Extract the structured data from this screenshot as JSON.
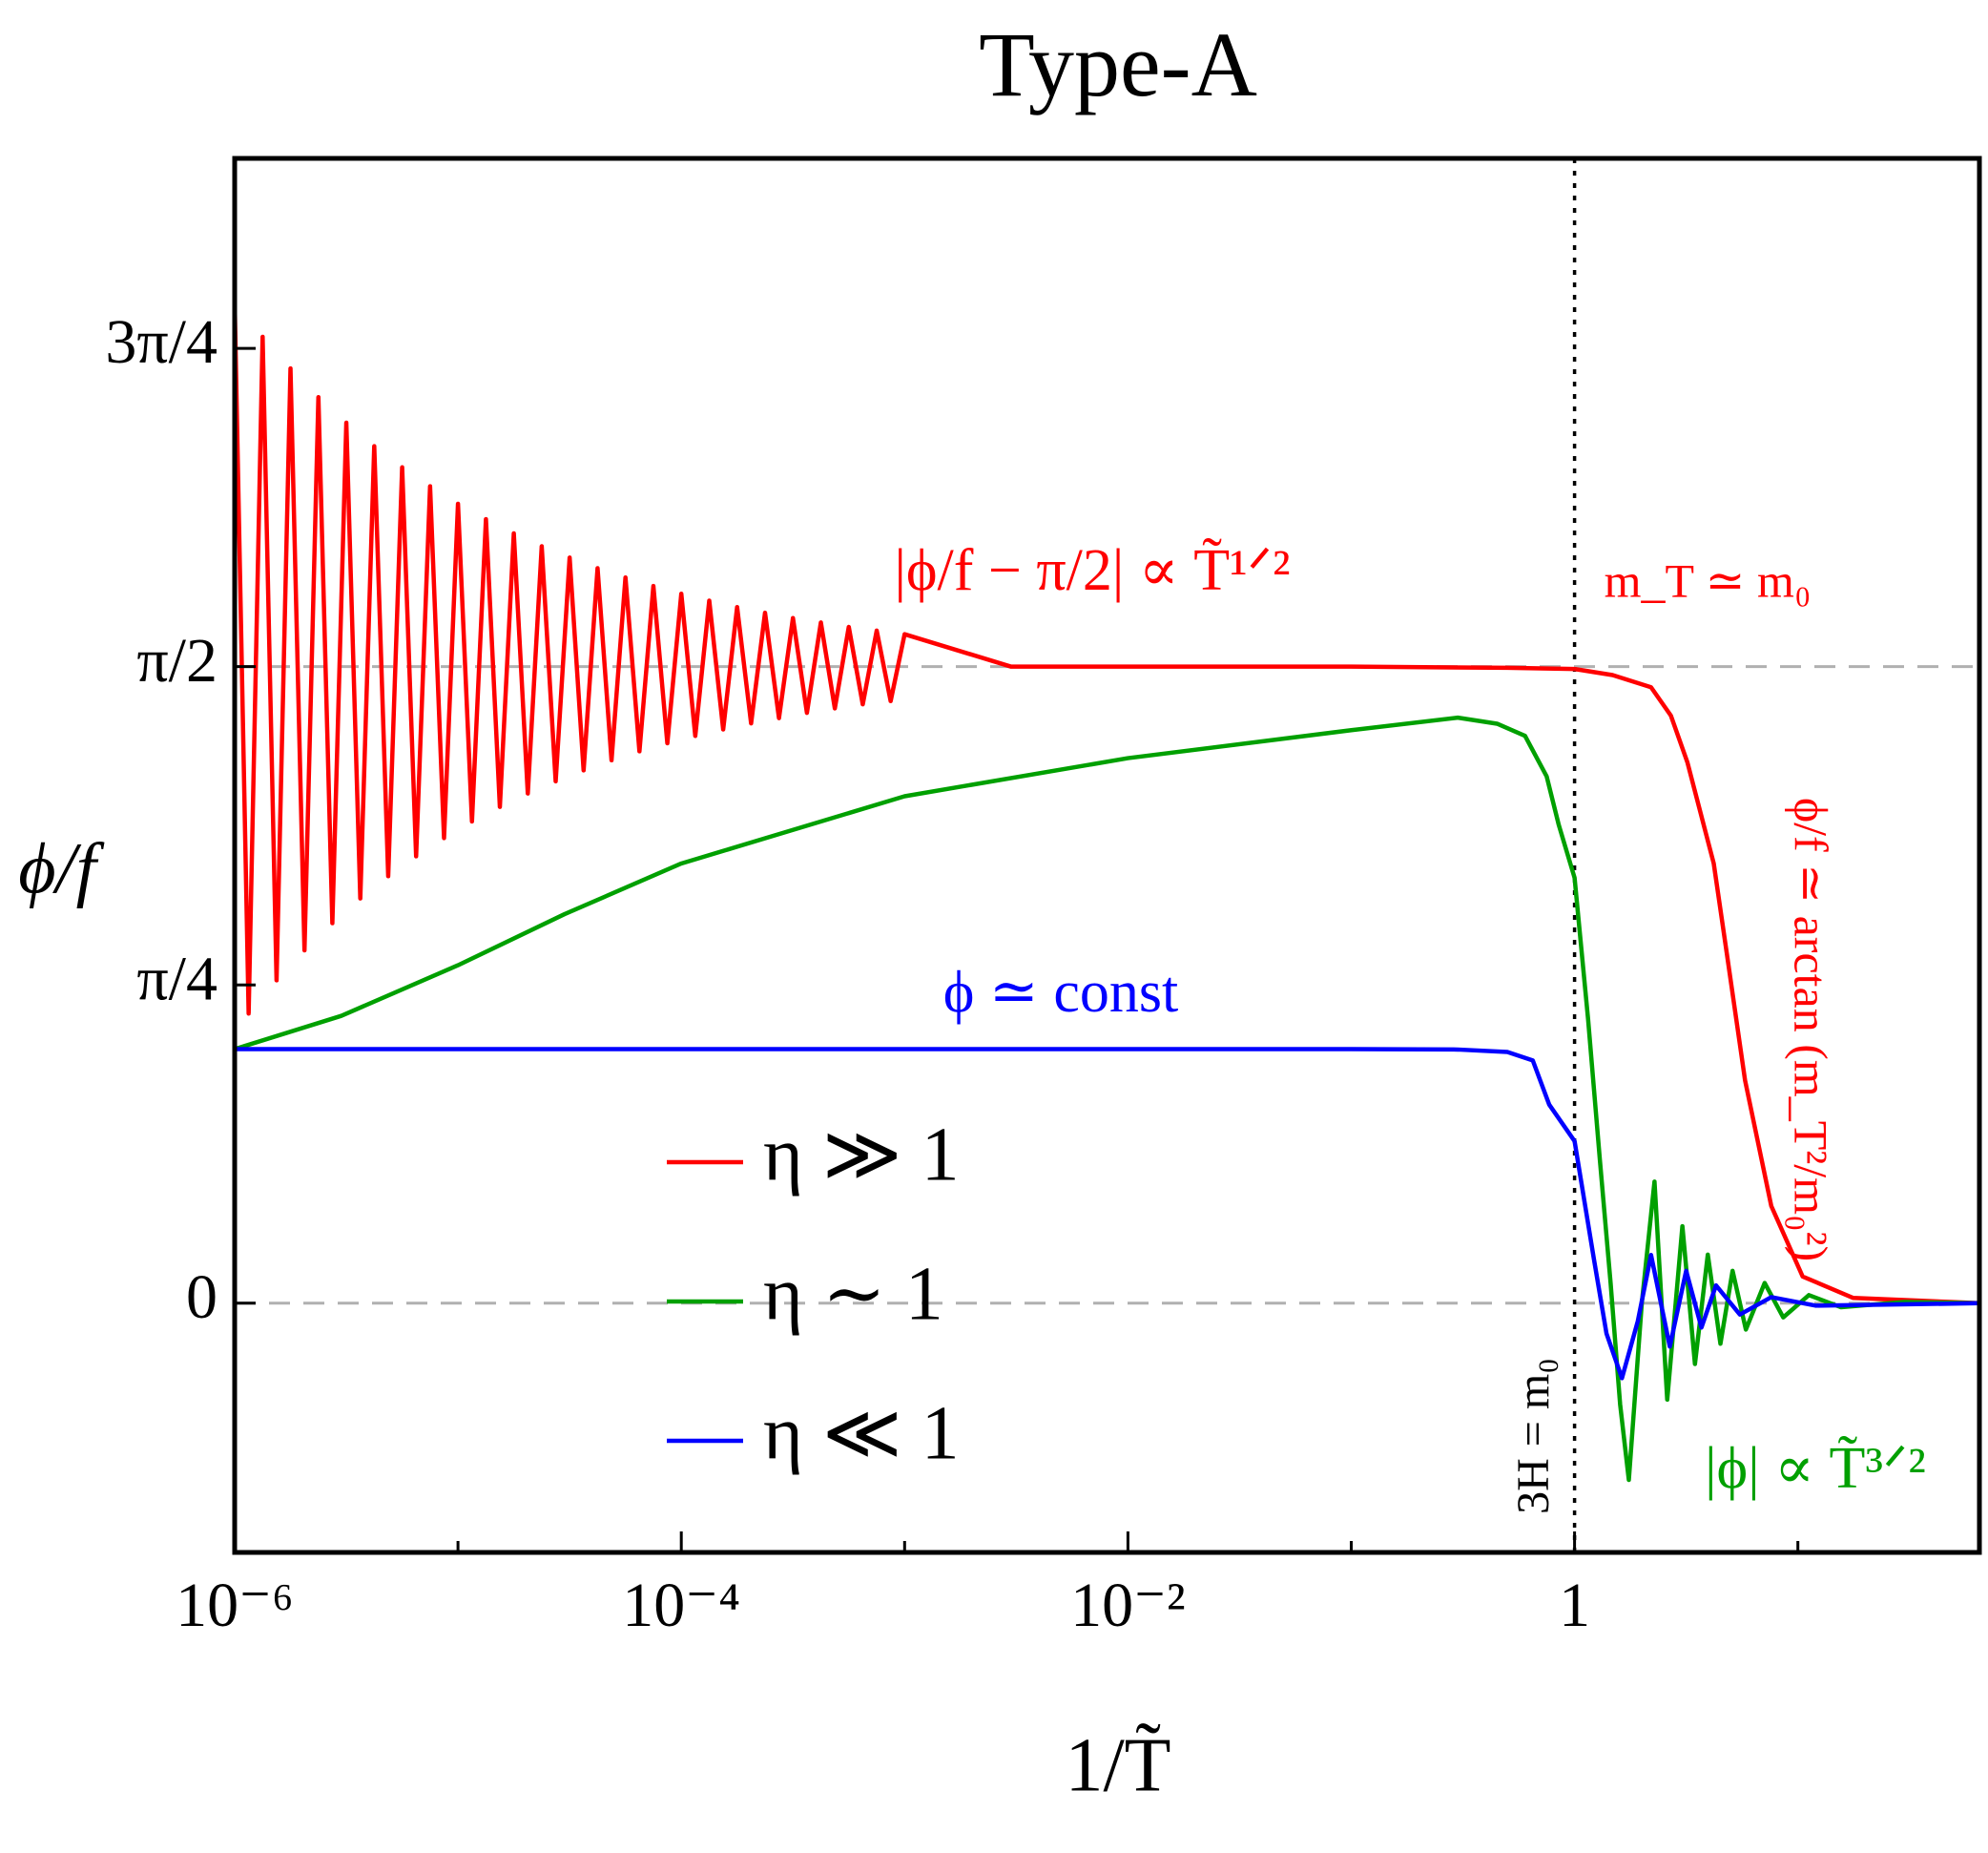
{
  "chart_data": {
    "type": "line",
    "title": "Type-A",
    "x_label": "1/T̃",
    "y_label": "ϕ/f",
    "x_scale": "log",
    "xlim": [
      1e-06,
      65
    ],
    "ylim": [
      -0.615,
      2.825
    ],
    "xticks": [
      {
        "value": 1e-06,
        "label": "10⁻⁶"
      },
      {
        "value": 0.0001,
        "label": "10⁻⁴"
      },
      {
        "value": 0.01,
        "label": "10⁻²"
      },
      1
    ],
    "xminorticks": [
      1e-05,
      0.001,
      0.1,
      10
    ],
    "yticks": [
      0,
      {
        "value": 0.7854,
        "label": "π/4"
      },
      {
        "value": 1.5708,
        "label": "π/2"
      },
      {
        "value": 2.3562,
        "label": "3π/4"
      }
    ],
    "hlines": [
      1.5708,
      0
    ],
    "vlines": [
      1
    ],
    "annotations": [
      "|ϕ/f − π/2| ∝ T̃¹ᐟ²",
      "m_T ≃ m₀",
      "ϕ/f ≃ arctan (m_T²/m₀²)",
      "ϕ ≃ const",
      "|ϕ| ∝ T̃³ᐟ²",
      "3H = m₀"
    ],
    "series": [
      {
        "name": "η ≫ 1",
        "color": "#ff0000",
        "x": [
          1e-06,
          1.155e-06,
          1.334e-06,
          1.54e-06,
          1.778e-06,
          2.054e-06,
          2.371e-06,
          2.738e-06,
          3.162e-06,
          3.652e-06,
          4.217e-06,
          4.87e-06,
          5.623e-06,
          6.494e-06,
          7.499e-06,
          8.66e-06,
          1e-05,
          1.155e-05,
          1.334e-05,
          1.54e-05,
          1.778e-05,
          2.054e-05,
          2.371e-05,
          2.738e-05,
          3.162e-05,
          3.652e-05,
          4.217e-05,
          4.87e-05,
          5.623e-05,
          6.494e-05,
          7.499e-05,
          8.66e-05,
          0.0001,
          0.0001155,
          0.0001334,
          0.000154,
          0.0001778,
          0.0002054,
          0.0002371,
          0.0002738,
          0.0003162,
          0.0003652,
          0.0004217,
          0.000487,
          0.0005623,
          0.0006494,
          0.0007499,
          0.000866,
          0.001,
          0.003,
          0.01,
          0.1,
          0.5,
          1,
          1.48,
          2.2,
          2.7,
          3.2,
          4.2,
          4.8,
          5.8,
          7.6,
          10.5,
          17.7,
          65
        ],
        "values": [
          2.4708,
          0.7148,
          2.3848,
          0.7968,
          2.3068,
          0.8708,
          2.2358,
          0.9378,
          2.1728,
          0.9988,
          2.1148,
          1.0538,
          2.0628,
          1.1028,
          2.0158,
          1.1478,
          1.9728,
          1.1888,
          1.9348,
          1.2248,
          1.8998,
          1.2578,
          1.8678,
          1.2878,
          1.8398,
          1.3148,
          1.8138,
          1.3398,
          1.7908,
          1.3618,
          1.7698,
          1.3818,
          1.7508,
          1.3998,
          1.7338,
          1.4158,
          1.7178,
          1.4308,
          1.7038,
          1.4438,
          1.6908,
          1.4568,
          1.6798,
          1.4678,
          1.6688,
          1.4778,
          1.6598,
          1.4858,
          1.6508,
          1.5708,
          1.5708,
          1.5708,
          1.568,
          1.565,
          1.55,
          1.52,
          1.45,
          1.335,
          1.085,
          0.865,
          0.55,
          0.24,
          0.066,
          0.013,
          0
        ]
      },
      {
        "name": "η ∼ 1",
        "color": "#00a000",
        "x": [
          1e-06,
          3e-06,
          1e-05,
          3e-05,
          0.0001,
          0.001,
          0.01,
          0.1,
          0.3,
          0.45,
          0.6,
          0.75,
          0.85,
          1,
          1.15,
          1.3,
          1.45,
          1.6,
          1.75,
          2,
          2.28,
          2.6,
          3.04,
          3.46,
          3.95,
          4.5,
          5.1,
          5.85,
          7.1,
          8.6,
          11.2,
          15.6,
          30,
          65
        ],
        "values": [
          0.627,
          0.709,
          0.834,
          0.96,
          1.085,
          1.251,
          1.345,
          1.414,
          1.445,
          1.43,
          1.4,
          1.3,
          1.18,
          1.05,
          0.7,
          0.35,
          0.05,
          -0.25,
          -0.436,
          0.0,
          0.3,
          -0.238,
          0.19,
          -0.15,
          0.12,
          -0.1,
          0.08,
          -0.065,
          0.05,
          -0.035,
          0.02,
          -0.01,
          0.003,
          0
        ]
      },
      {
        "name": "η ≪ 1",
        "color": "#0000ff",
        "x": [
          1e-06,
          0.1,
          0.3,
          0.5,
          0.65,
          0.77,
          1,
          1.22,
          1.39,
          1.63,
          1.92,
          2.2,
          2.67,
          3.16,
          3.7,
          4.3,
          5.5,
          7.6,
          12,
          65
        ],
        "values": [
          0.627,
          0.627,
          0.626,
          0.62,
          0.599,
          0.49,
          0.4,
          0.11,
          -0.075,
          -0.185,
          -0.044,
          0.119,
          -0.107,
          0.08,
          -0.06,
          0.044,
          -0.028,
          0.015,
          -0.006,
          0
        ]
      }
    ]
  }
}
